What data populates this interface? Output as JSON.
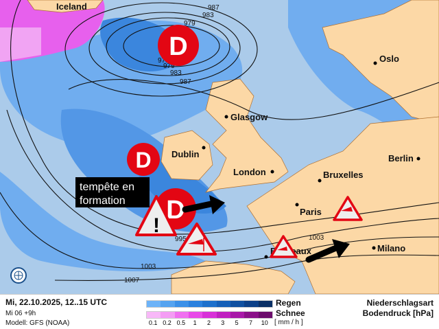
{
  "map": {
    "cities": [
      "Iceland",
      "Oslo",
      "Glasgow",
      "Dublin",
      "London",
      "Berlin",
      "Bruxelles",
      "Paris",
      "Bordeaux",
      "Milano"
    ],
    "isobar_labels": [
      "987",
      "983",
      "979",
      "975",
      "979",
      "983",
      "987",
      "995",
      "1003",
      "1003",
      "1007"
    ],
    "low_pressure_symbol": "D",
    "annotation": [
      "tempête en",
      "formation"
    ],
    "icons": [
      "warning-exclamation-icon",
      "wind-warning-icon",
      "wind-direction-arrow-icon",
      "globe-icon"
    ],
    "colors": {
      "sea": "#abcbea",
      "land": "#fcd8a6",
      "rain_light": "#6aaaf0",
      "rain_mid": "#2f7fdc",
      "snow": "#ee44ee",
      "low": "#e30613"
    }
  },
  "legend": {
    "date": "Mi, 22.10.2025, 12..15 UTC",
    "run": "Mi 06 +9h",
    "model": "Modell: GFS (NOAA)",
    "rain_label": "Regen",
    "snow_label": "Schnee",
    "scale": [
      "0.1",
      "0.2",
      "0.5",
      "1",
      "2",
      "3",
      "5",
      "7",
      "10"
    ],
    "unit": "[ mm / h ]",
    "title1": "Niederschlagsart",
    "title2": "Bodendruck [hPa]",
    "rain_colors": [
      "#6db3f8",
      "#55a3f0",
      "#3b90e8",
      "#2a80de",
      "#1d70cc",
      "#1560b8",
      "#0f50a0",
      "#0b4088",
      "#0a3066"
    ],
    "snow_colors": [
      "#f8b8f8",
      "#f49cf4",
      "#f070f0",
      "#e84ae8",
      "#d830d8",
      "#c020c0",
      "#a818a8",
      "#8a1088",
      "#6c0c6c"
    ]
  }
}
